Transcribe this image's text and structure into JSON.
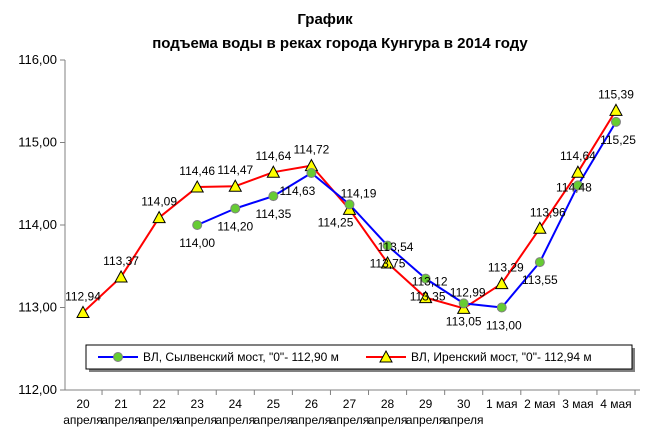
{
  "chart_data": {
    "type": "line",
    "title": "График",
    "subtitle": "подъема воды в реках города Кунгура в 2014 году",
    "categories": [
      {
        "top": "20",
        "bottom": "апреля"
      },
      {
        "top": "21",
        "bottom": "апреля"
      },
      {
        "top": "22",
        "bottom": "апреля"
      },
      {
        "top": "23",
        "bottom": "апреля"
      },
      {
        "top": "24",
        "bottom": "апреля"
      },
      {
        "top": "25",
        "bottom": "апреля"
      },
      {
        "top": "26",
        "bottom": "апреля"
      },
      {
        "top": "27",
        "bottom": "апреля"
      },
      {
        "top": "28",
        "bottom": "апреля"
      },
      {
        "top": "29",
        "bottom": "апреля"
      },
      {
        "top": "30",
        "bottom": "апреля"
      },
      {
        "top": "1 мая",
        "bottom": ""
      },
      {
        "top": "2 мая",
        "bottom": ""
      },
      {
        "top": "3 мая",
        "bottom": ""
      },
      {
        "top": "4 мая",
        "bottom": ""
      }
    ],
    "ylim": [
      112.0,
      116.0
    ],
    "yticks": [
      "112,00",
      "113,00",
      "114,00",
      "115,00",
      "116,00"
    ],
    "ytick_values": [
      112,
      113,
      114,
      115,
      116
    ],
    "grid": false,
    "legend_position": "bottom",
    "series": [
      {
        "name": "ВЛ, Сылвенский мост, \"0\"- 112,90 м",
        "line_color": "#0000ff",
        "marker": "circle",
        "marker_color": "#66cc33",
        "values": [
          null,
          null,
          null,
          114.0,
          114.2,
          114.35,
          114.63,
          114.25,
          113.75,
          113.35,
          113.05,
          113.0,
          113.55,
          114.48,
          115.25
        ],
        "labels": [
          null,
          null,
          null,
          "114,00",
          "114,20",
          "114,35",
          "114,63",
          "114,25",
          "113,75",
          "113,35",
          "113,05",
          "113,00",
          "113,55",
          "114,48",
          "115,25"
        ]
      },
      {
        "name": "ВЛ, Иренский мост, \"0\"- 112,94 м",
        "line_color": "#ff0000",
        "marker": "triangle",
        "marker_color": "#ffff00",
        "values": [
          112.94,
          113.37,
          114.09,
          114.46,
          114.47,
          114.64,
          114.72,
          114.19,
          113.54,
          113.12,
          112.99,
          113.29,
          113.96,
          114.64,
          115.39
        ],
        "labels": [
          "112,94",
          "113,37",
          "114,09",
          "114,46",
          "114,47",
          "114,64",
          "114,72",
          "114,19",
          "113,54",
          "113,12",
          "112,99",
          "113,29",
          "113,96",
          "114,64",
          "115,39"
        ]
      }
    ]
  }
}
